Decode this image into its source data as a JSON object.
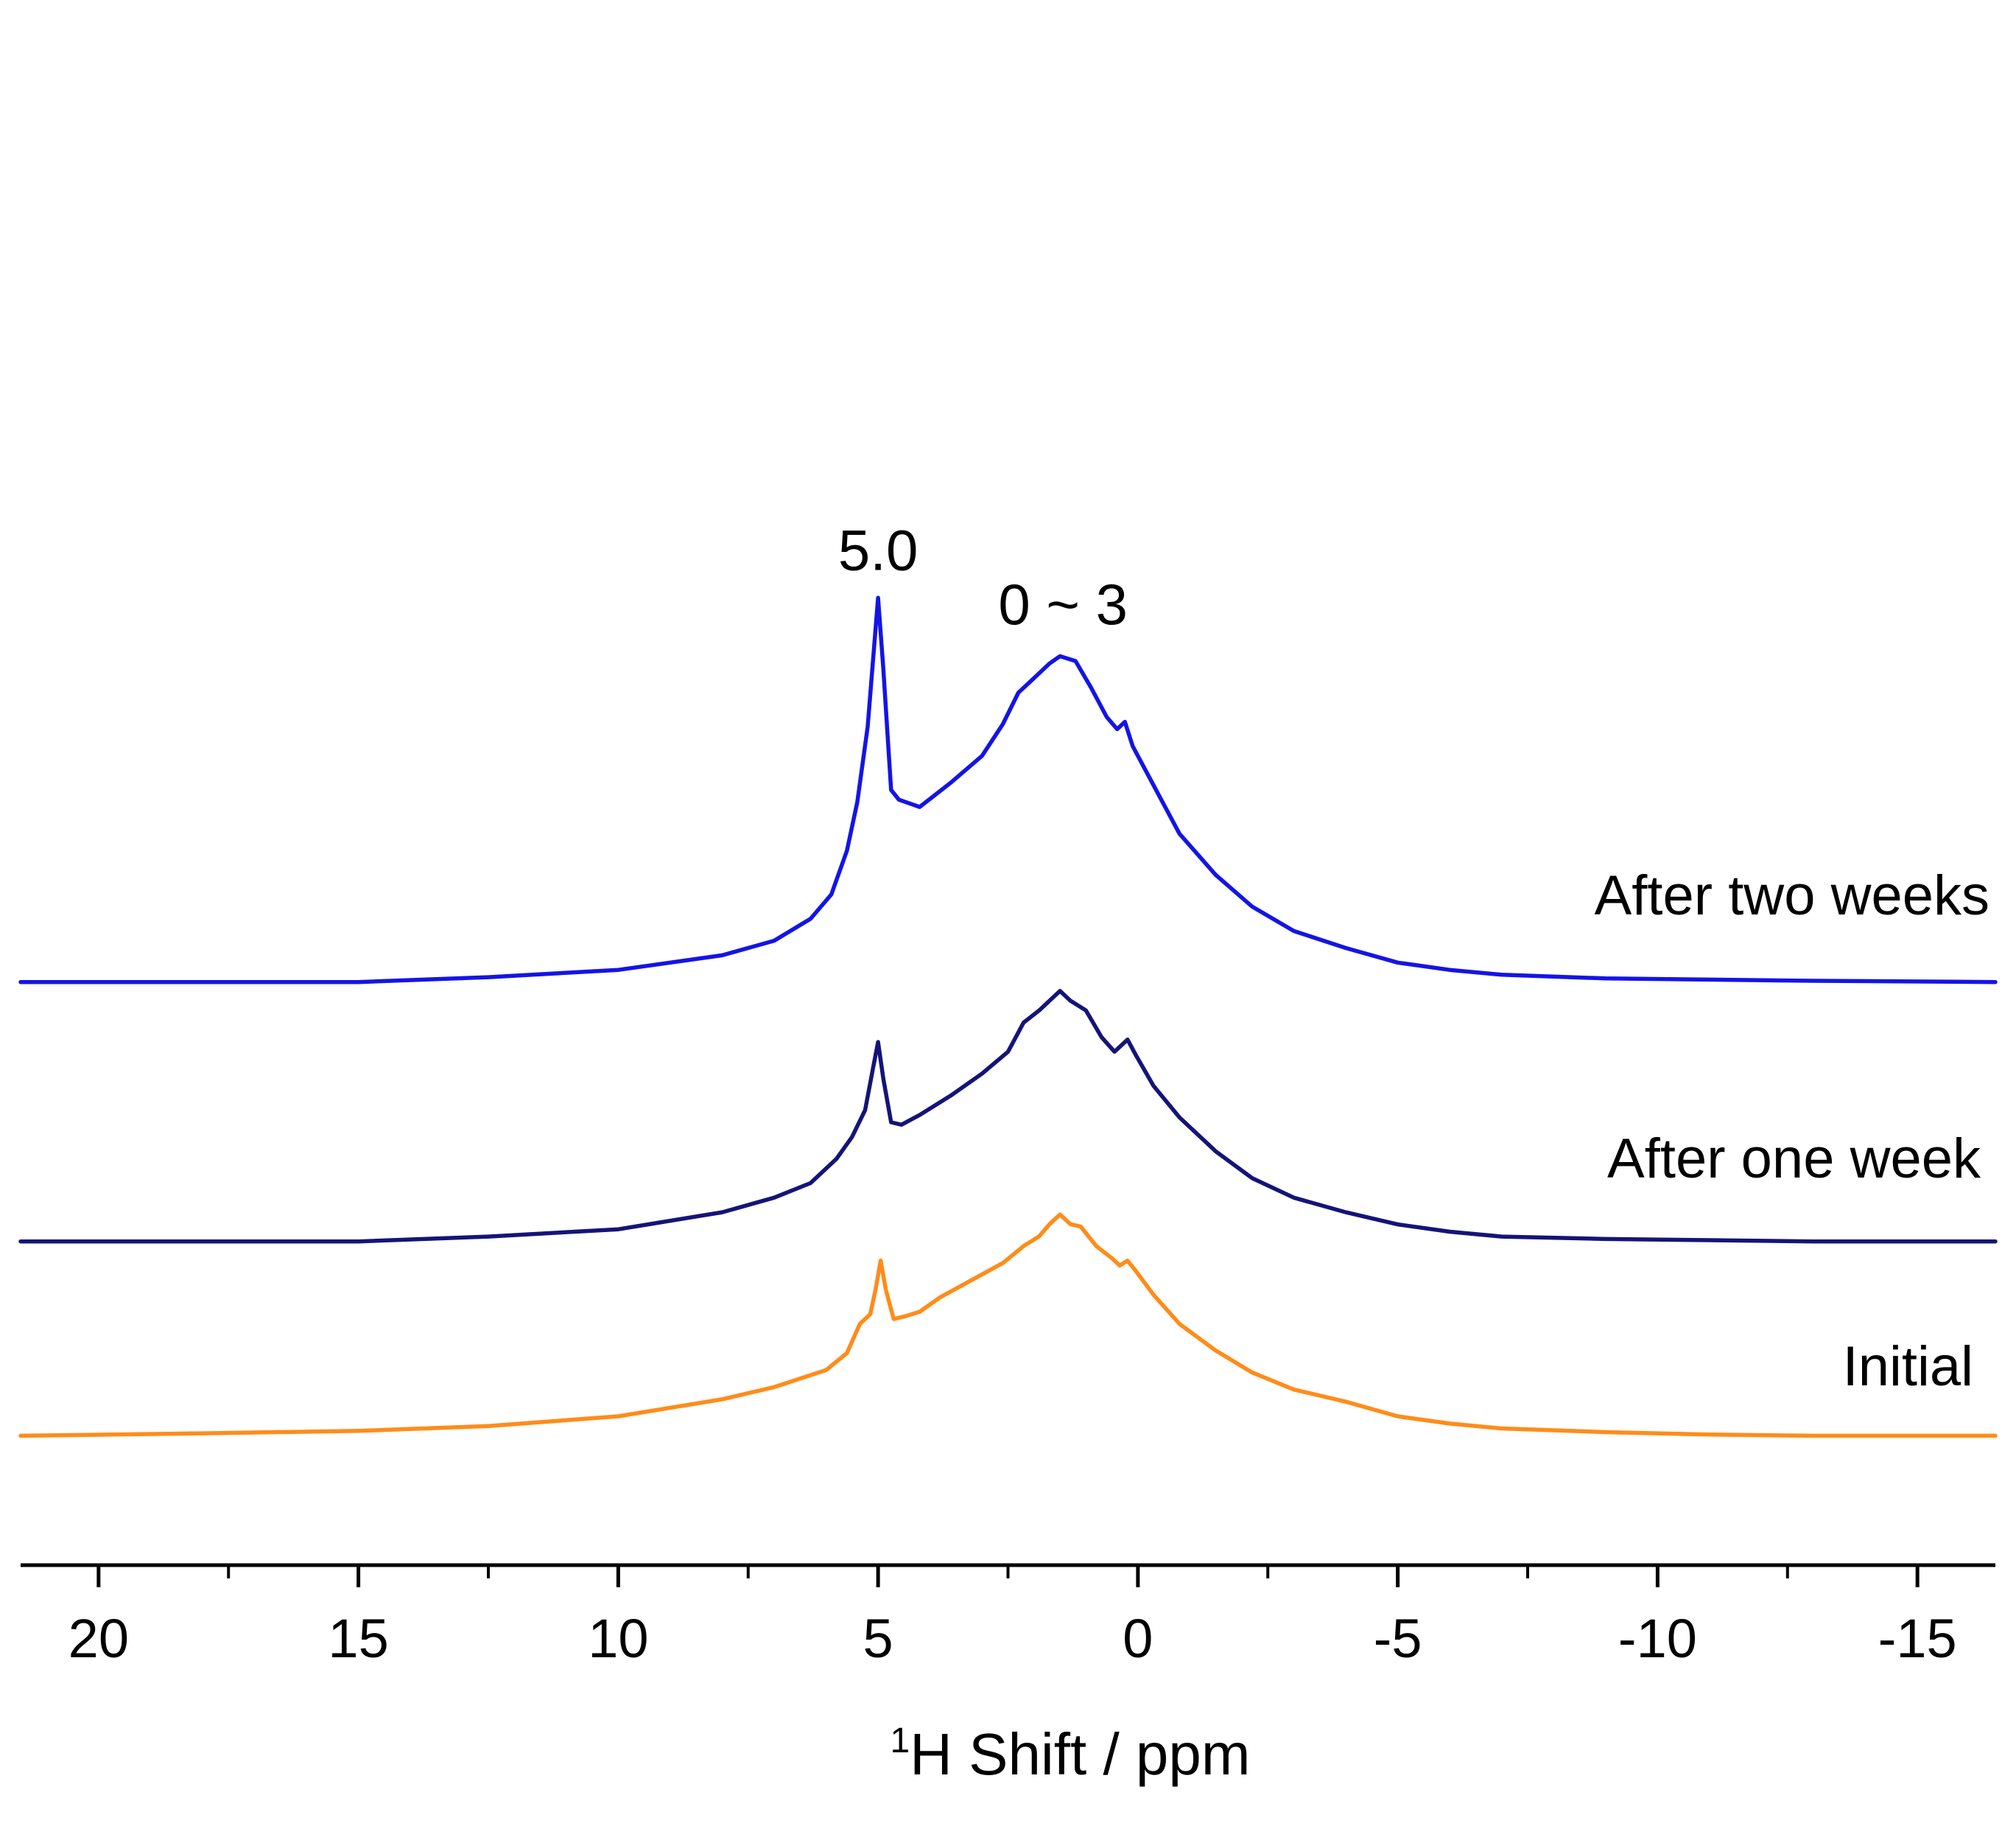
{
  "chart_data": {
    "type": "line",
    "title": "",
    "xlabel": {
      "superscript": "1",
      "text": "H Shift / ppm"
    },
    "ylabel": "",
    "x_reversed": true,
    "xlim": [
      21.5,
      -16.5
    ],
    "x_ticks": [
      {
        "value": 20,
        "label": "20"
      },
      {
        "value": 15,
        "label": "15"
      },
      {
        "value": 10,
        "label": "10"
      },
      {
        "value": 5,
        "label": "5"
      },
      {
        "value": 0,
        "label": "0"
      },
      {
        "value": -5,
        "label": "-5"
      },
      {
        "value": -10,
        "label": "-10"
      },
      {
        "value": -15,
        "label": "-15"
      }
    ],
    "x_minor_ticks": [
      17.5,
      12.5,
      7.5,
      2.5,
      -2.5,
      -7.5,
      -12.5
    ],
    "y_axis_shown": false,
    "grid": false,
    "legend": "none",
    "series": [
      {
        "name": "Initial",
        "color": "#FF8C1A",
        "offset": 0,
        "points": [
          [
            21.5,
            0.02
          ],
          [
            18,
            0.03
          ],
          [
            15,
            0.04
          ],
          [
            12.5,
            0.06
          ],
          [
            10,
            0.1
          ],
          [
            8,
            0.17
          ],
          [
            7,
            0.22
          ],
          [
            6,
            0.29
          ],
          [
            5.6,
            0.36
          ],
          [
            5.35,
            0.48
          ],
          [
            5.15,
            0.52
          ],
          [
            5.05,
            0.62
          ],
          [
            4.95,
            0.74
          ],
          [
            4.85,
            0.62
          ],
          [
            4.7,
            0.5
          ],
          [
            4.5,
            0.51
          ],
          [
            4.2,
            0.53
          ],
          [
            3.8,
            0.59
          ],
          [
            3.2,
            0.66
          ],
          [
            2.6,
            0.73
          ],
          [
            2.2,
            0.8
          ],
          [
            1.9,
            0.84
          ],
          [
            1.7,
            0.89
          ],
          [
            1.5,
            0.93
          ],
          [
            1.3,
            0.89
          ],
          [
            1.1,
            0.88
          ],
          [
            0.8,
            0.8
          ],
          [
            0.5,
            0.75
          ],
          [
            0.35,
            0.72
          ],
          [
            0.2,
            0.74
          ],
          [
            0.05,
            0.7
          ],
          [
            -0.3,
            0.6
          ],
          [
            -0.8,
            0.48
          ],
          [
            -1.5,
            0.37
          ],
          [
            -2.2,
            0.28
          ],
          [
            -3,
            0.21
          ],
          [
            -4,
            0.16
          ],
          [
            -5,
            0.1
          ],
          [
            -6,
            0.07
          ],
          [
            -7,
            0.05
          ],
          [
            -9,
            0.035
          ],
          [
            -11,
            0.025
          ],
          [
            -13,
            0.02
          ],
          [
            -16.5,
            0.02
          ]
        ]
      },
      {
        "name": "After one week",
        "color": "#141478",
        "offset": 1,
        "points": [
          [
            21.5,
            0.01
          ],
          [
            18,
            0.01
          ],
          [
            15,
            0.01
          ],
          [
            12.5,
            0.03
          ],
          [
            10,
            0.06
          ],
          [
            8,
            0.13
          ],
          [
            7,
            0.19
          ],
          [
            6.3,
            0.25
          ],
          [
            5.8,
            0.35
          ],
          [
            5.5,
            0.44
          ],
          [
            5.25,
            0.55
          ],
          [
            5.1,
            0.72
          ],
          [
            5.0,
            0.83
          ],
          [
            4.9,
            0.68
          ],
          [
            4.75,
            0.5
          ],
          [
            4.55,
            0.49
          ],
          [
            4.2,
            0.53
          ],
          [
            3.6,
            0.61
          ],
          [
            3.0,
            0.7
          ],
          [
            2.5,
            0.79
          ],
          [
            2.2,
            0.91
          ],
          [
            1.9,
            0.96
          ],
          [
            1.6,
            1.02
          ],
          [
            1.5,
            1.04
          ],
          [
            1.3,
            1.0
          ],
          [
            1.0,
            0.96
          ],
          [
            0.7,
            0.85
          ],
          [
            0.45,
            0.79
          ],
          [
            0.3,
            0.82
          ],
          [
            0.2,
            0.84
          ],
          [
            0.05,
            0.78
          ],
          [
            -0.3,
            0.65
          ],
          [
            -0.8,
            0.52
          ],
          [
            -1.5,
            0.38
          ],
          [
            -2.2,
            0.27
          ],
          [
            -3,
            0.19
          ],
          [
            -4,
            0.13
          ],
          [
            -5,
            0.08
          ],
          [
            -6,
            0.05
          ],
          [
            -7,
            0.03
          ],
          [
            -9,
            0.02
          ],
          [
            -11,
            0.015
          ],
          [
            -13,
            0.01
          ],
          [
            -16.5,
            0.01
          ]
        ]
      },
      {
        "name": "After two weeks",
        "color": "#1414E6",
        "offset": 2,
        "points": [
          [
            21.5,
            0.01
          ],
          [
            18,
            0.01
          ],
          [
            15,
            0.01
          ],
          [
            12.5,
            0.03
          ],
          [
            10,
            0.06
          ],
          [
            8,
            0.12
          ],
          [
            7,
            0.18
          ],
          [
            6.3,
            0.27
          ],
          [
            5.9,
            0.37
          ],
          [
            5.6,
            0.55
          ],
          [
            5.4,
            0.75
          ],
          [
            5.2,
            1.06
          ],
          [
            5.08,
            1.38
          ],
          [
            5.0,
            1.59
          ],
          [
            4.9,
            1.3
          ],
          [
            4.75,
            0.8
          ],
          [
            4.6,
            0.76
          ],
          [
            4.2,
            0.73
          ],
          [
            3.6,
            0.83
          ],
          [
            3.0,
            0.94
          ],
          [
            2.6,
            1.07
          ],
          [
            2.3,
            1.2
          ],
          [
            2.0,
            1.26
          ],
          [
            1.7,
            1.32
          ],
          [
            1.5,
            1.35
          ],
          [
            1.2,
            1.33
          ],
          [
            0.9,
            1.22
          ],
          [
            0.6,
            1.1
          ],
          [
            0.4,
            1.05
          ],
          [
            0.25,
            1.08
          ],
          [
            0.1,
            0.98
          ],
          [
            -0.3,
            0.82
          ],
          [
            -0.8,
            0.62
          ],
          [
            -1.5,
            0.45
          ],
          [
            -2.2,
            0.32
          ],
          [
            -3,
            0.22
          ],
          [
            -4,
            0.15
          ],
          [
            -5,
            0.09
          ],
          [
            -6,
            0.06
          ],
          [
            -7,
            0.04
          ],
          [
            -9,
            0.025
          ],
          [
            -11,
            0.02
          ],
          [
            -13,
            0.015
          ],
          [
            -16.5,
            0.01
          ]
        ]
      }
    ],
    "annotations": [
      {
        "text": "5.0",
        "x": 5.0
      },
      {
        "text": "0 ~ 3",
        "x": 1.3
      }
    ]
  }
}
